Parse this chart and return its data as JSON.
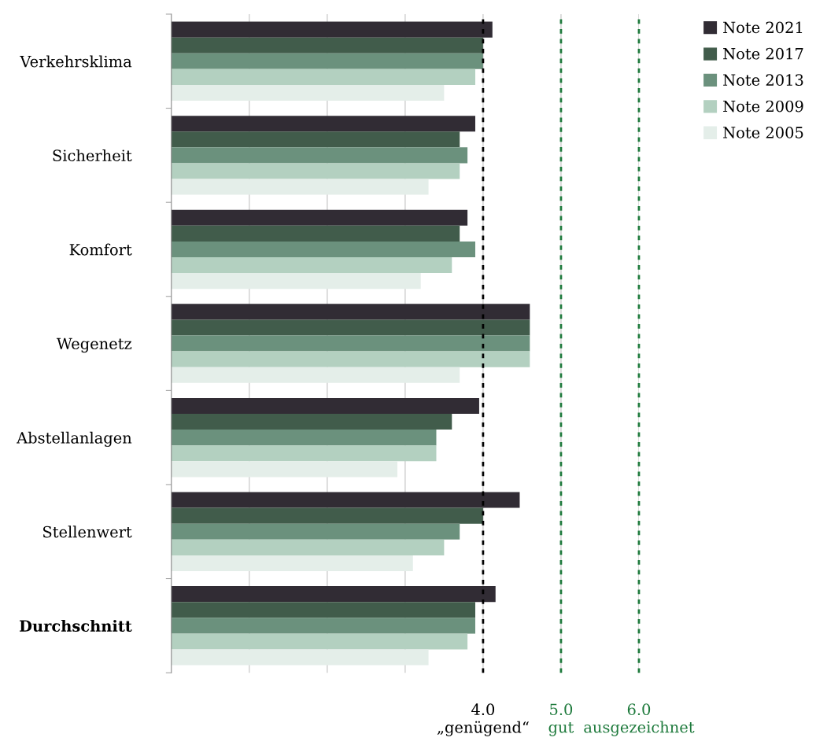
{
  "chart_data": {
    "type": "bar",
    "orientation": "horizontal",
    "categories": [
      "Verkehrsklima",
      "Sicherheit",
      "Komfort",
      "Wegenetz",
      "Abstellanlagen",
      "Stellenwert",
      "Durchschnitt"
    ],
    "series": [
      {
        "name": "Note 2021",
        "color": "#312c34",
        "values": [
          4.12,
          3.9,
          3.8,
          4.6,
          3.95,
          4.47,
          4.16
        ]
      },
      {
        "name": "Note 2017",
        "color": "#415c4b",
        "values": [
          4.0,
          3.7,
          3.7,
          4.6,
          3.6,
          4.0,
          3.9
        ]
      },
      {
        "name": "Note 2013",
        "color": "#6b917d",
        "values": [
          4.0,
          3.8,
          3.9,
          4.6,
          3.4,
          3.7,
          3.9
        ]
      },
      {
        "name": "Note 2009",
        "color": "#b3d0c0",
        "values": [
          3.9,
          3.7,
          3.6,
          4.6,
          3.4,
          3.5,
          3.8
        ]
      },
      {
        "name": "Note 2005",
        "color": "#e4eee9",
        "values": [
          3.5,
          3.3,
          3.2,
          3.7,
          2.9,
          3.1,
          3.3
        ]
      }
    ],
    "xlim": [
      0,
      6
    ],
    "xticks": [
      {
        "value": 1,
        "label": null
      },
      {
        "value": 2,
        "label": null
      },
      {
        "value": 3,
        "label": null
      },
      {
        "value": 4,
        "label": "4.0\n„genügend“"
      },
      {
        "value": 5,
        "label": "5.0\ngut"
      },
      {
        "value": 6,
        "label": "6.0\nausgezeichnet"
      }
    ],
    "grid": "x",
    "ref_lines": [
      {
        "axis": "x",
        "value": 4,
        "color": "#000000",
        "line_style": "dotted"
      },
      {
        "axis": "x",
        "value": 5,
        "color": "#1e7a3c",
        "line_style": "dotted"
      },
      {
        "axis": "x",
        "value": 6,
        "color": "#1e7a3c",
        "line_style": "dotted"
      }
    ],
    "legend": "top right"
  }
}
